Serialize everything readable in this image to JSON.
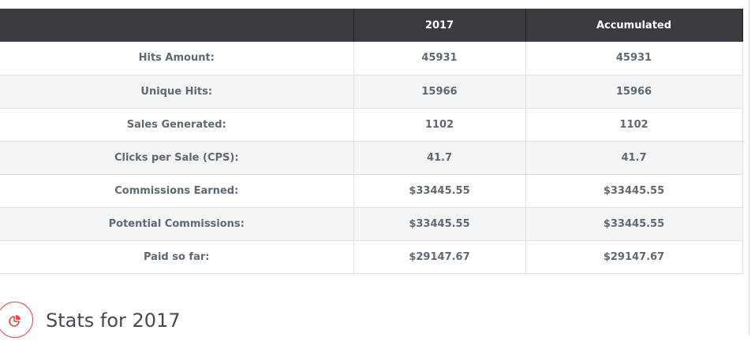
{
  "table": {
    "headers": [
      "",
      "2017",
      "Accumulated"
    ],
    "rows": [
      {
        "label": "Hits Amount:",
        "year": "45931",
        "accumulated": "45931"
      },
      {
        "label": "Unique Hits:",
        "year": "15966",
        "accumulated": "15966"
      },
      {
        "label": "Sales Generated:",
        "year": "1102",
        "accumulated": "1102"
      },
      {
        "label": "Clicks per Sale (CPS):",
        "year": "41.7",
        "accumulated": "41.7"
      },
      {
        "label": "Commissions Earned:",
        "year": "$33445.55",
        "accumulated": "$33445.55"
      },
      {
        "label": "Potential Commissions:",
        "year": "$33445.55",
        "accumulated": "$33445.55"
      },
      {
        "label": "Paid so far:",
        "year": "$29147.67",
        "accumulated": "$29147.67"
      }
    ]
  },
  "section": {
    "title": "Stats for 2017",
    "icon": "pie-chart-icon",
    "accent_color": "#e04b4b"
  }
}
